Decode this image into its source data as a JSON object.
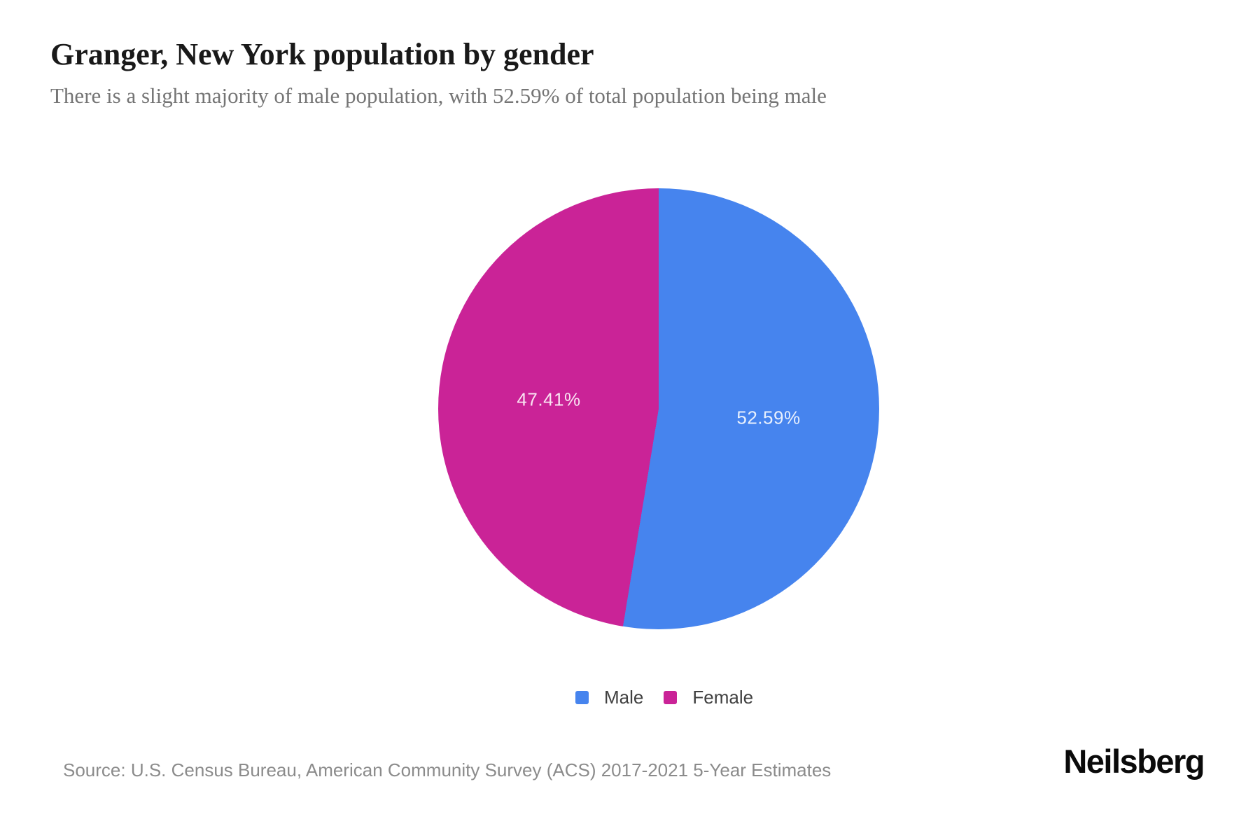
{
  "header": {
    "title": "Granger, New York population by gender",
    "subtitle": "There is a slight majority of male population, with 52.59% of total population being male"
  },
  "chart_data": {
    "type": "pie",
    "title": "Granger, New York population by gender",
    "categories": [
      "Male",
      "Female"
    ],
    "values": [
      52.59,
      47.41
    ],
    "slices": [
      {
        "label": "Male",
        "value": 52.59,
        "display": "52.59%",
        "color": "#4684EE"
      },
      {
        "label": "Female",
        "value": 47.41,
        "display": "47.41%",
        "color": "#CA2397"
      }
    ],
    "start_angle_deg": 0,
    "direction": "clockwise",
    "slice_label_color": "#FFFFFF",
    "legend_position": "bottom"
  },
  "legend": {
    "items": [
      {
        "label": "Male",
        "color": "#4684EE"
      },
      {
        "label": "Female",
        "color": "#CA2397"
      }
    ]
  },
  "footer": {
    "source": "Source: U.S. Census Bureau, American Community Survey (ACS) 2017-2021 5-Year Estimates",
    "brand": "Neilsberg"
  }
}
